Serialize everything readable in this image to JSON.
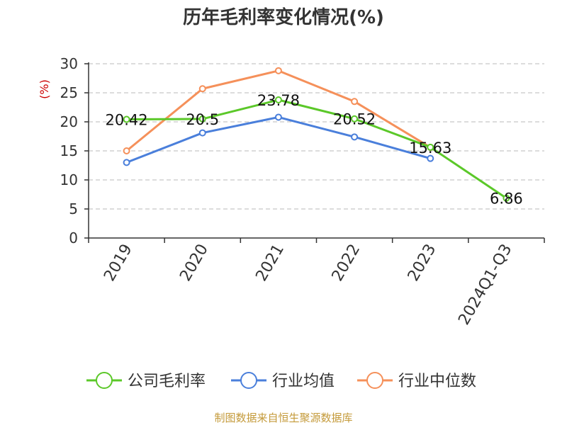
{
  "chart_data": {
    "type": "line",
    "title": "历年毛利率变化情况(%)",
    "ylabel": "(%)",
    "ylim": [
      0,
      30
    ],
    "yticks": [
      0,
      5,
      10,
      15,
      20,
      25,
      30
    ],
    "grid": true,
    "legend_position": "bottom",
    "categories": [
      "2019",
      "2020",
      "2021",
      "2022",
      "2023",
      "2024Q1-Q3"
    ],
    "series": [
      {
        "name": "公司毛利率",
        "color": "#5bc829",
        "values": [
          20.42,
          20.5,
          23.78,
          20.52,
          15.63,
          6.86
        ],
        "labels": [
          "20.42",
          "20.5",
          "23.78",
          "20.52",
          "15.63",
          "6.86"
        ]
      },
      {
        "name": "行业均值",
        "color": "#4a7fdb",
        "values": [
          13.0,
          18.1,
          20.8,
          17.4,
          13.7,
          null
        ]
      },
      {
        "name": "行业中位数",
        "color": "#f5905a",
        "values": [
          15.0,
          25.7,
          28.8,
          23.5,
          15.6,
          null
        ]
      }
    ],
    "source": "制图数据来自恒生聚源数据库"
  }
}
